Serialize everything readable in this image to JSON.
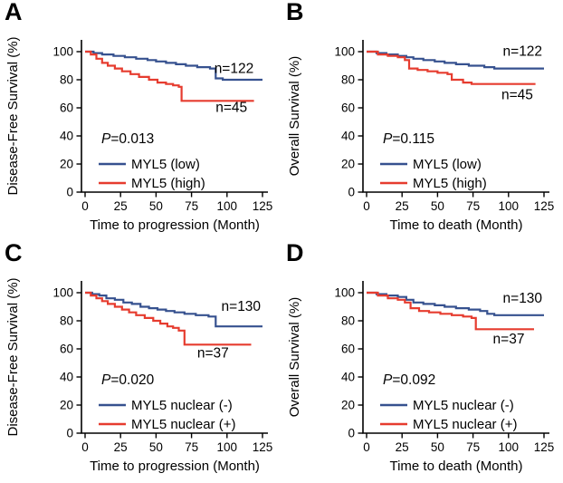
{
  "figure": {
    "background": "#ffffff",
    "colors": {
      "low_group": "#36518f",
      "high_group": "#e63c2f",
      "axis": "#000000"
    }
  },
  "chart_data": [
    {
      "panel": "A",
      "type": "line",
      "subtype": "kaplan_meier_step",
      "xlabel": "Time to progression (Month)",
      "ylabel": "Disease-Free Survival (%)",
      "xlim": [
        0,
        130
      ],
      "ylim": [
        0,
        108
      ],
      "xticks": [
        0,
        25,
        50,
        75,
        100,
        125
      ],
      "yticks": [
        0,
        20,
        40,
        60,
        80,
        100
      ],
      "grid": false,
      "legend_position": "lower-left",
      "p_value": "P=0.013",
      "series": [
        {
          "name": "MYL5 (low)",
          "color": "#36518f",
          "n_label": "n=122",
          "n_label_pos": [
            91,
            85
          ],
          "points": [
            [
              0,
              100
            ],
            [
              6,
              99
            ],
            [
              12,
              98
            ],
            [
              20,
              97
            ],
            [
              28,
              96
            ],
            [
              36,
              95
            ],
            [
              44,
              94
            ],
            [
              50,
              93
            ],
            [
              57,
              92
            ],
            [
              64,
              91
            ],
            [
              71,
              90
            ],
            [
              79,
              89
            ],
            [
              88,
              88
            ],
            [
              92,
              81
            ],
            [
              97,
              80
            ],
            [
              125,
              80
            ]
          ]
        },
        {
          "name": "MYL5 (high)",
          "color": "#e63c2f",
          "n_label": "n=45",
          "n_label_pos": [
            92,
            57
          ],
          "points": [
            [
              0,
              100
            ],
            [
              4,
              98
            ],
            [
              8,
              95
            ],
            [
              12,
              92
            ],
            [
              16,
              90
            ],
            [
              21,
              88
            ],
            [
              26,
              86
            ],
            [
              32,
              84
            ],
            [
              38,
              82
            ],
            [
              45,
              80
            ],
            [
              51,
              78
            ],
            [
              57,
              77
            ],
            [
              62,
              76
            ],
            [
              66,
              75
            ],
            [
              68,
              65
            ],
            [
              119,
              65
            ]
          ]
        }
      ]
    },
    {
      "panel": "B",
      "type": "line",
      "subtype": "kaplan_meier_step",
      "xlabel": "Time to death (Month)",
      "ylabel": "Overall Survival (%)",
      "xlim": [
        0,
        130
      ],
      "ylim": [
        0,
        108
      ],
      "xticks": [
        0,
        25,
        50,
        75,
        100,
        125
      ],
      "yticks": [
        0,
        20,
        40,
        60,
        80,
        100
      ],
      "grid": false,
      "legend_position": "lower-left",
      "p_value": "P=0.115",
      "series": [
        {
          "name": "MYL5 (low)",
          "color": "#36518f",
          "n_label": "n=122",
          "n_label_pos": [
            96,
            97
          ],
          "points": [
            [
              0,
              100
            ],
            [
              7,
              99
            ],
            [
              14,
              98
            ],
            [
              22,
              97
            ],
            [
              28,
              96
            ],
            [
              33,
              95
            ],
            [
              40,
              94
            ],
            [
              48,
              93
            ],
            [
              55,
              92
            ],
            [
              63,
              91
            ],
            [
              72,
              90
            ],
            [
              83,
              89
            ],
            [
              90,
              88
            ],
            [
              125,
              88
            ]
          ]
        },
        {
          "name": "MYL5 (high)",
          "color": "#e63c2f",
          "n_label": "n=45",
          "n_label_pos": [
            95,
            66
          ],
          "points": [
            [
              0,
              100
            ],
            [
              8,
              98
            ],
            [
              15,
              97
            ],
            [
              22,
              96
            ],
            [
              27,
              94
            ],
            [
              30,
              88
            ],
            [
              36,
              87
            ],
            [
              43,
              86
            ],
            [
              50,
              85
            ],
            [
              57,
              84
            ],
            [
              60,
              80
            ],
            [
              68,
              78
            ],
            [
              74,
              77
            ],
            [
              119,
              77
            ]
          ]
        }
      ]
    },
    {
      "panel": "C",
      "type": "line",
      "subtype": "kaplan_meier_step",
      "xlabel": "Time to progression (Month)",
      "ylabel": "Disease-Free Survival (%)",
      "xlim": [
        0,
        130
      ],
      "ylim": [
        0,
        108
      ],
      "xticks": [
        0,
        25,
        50,
        75,
        100,
        125
      ],
      "yticks": [
        0,
        20,
        40,
        60,
        80,
        100
      ],
      "grid": false,
      "legend_position": "lower-left",
      "p_value": "P=0.020",
      "series": [
        {
          "name": "MYL5 nuclear (-)",
          "color": "#36518f",
          "n_label": "n=130",
          "n_label_pos": [
            96,
            87
          ],
          "points": [
            [
              0,
              100
            ],
            [
              5,
              99
            ],
            [
              10,
              98
            ],
            [
              15,
              96
            ],
            [
              21,
              95
            ],
            [
              27,
              93
            ],
            [
              33,
              92
            ],
            [
              39,
              90
            ],
            [
              45,
              89
            ],
            [
              51,
              88
            ],
            [
              57,
              87
            ],
            [
              63,
              86
            ],
            [
              70,
              85
            ],
            [
              78,
              84
            ],
            [
              87,
              83
            ],
            [
              92,
              76
            ],
            [
              125,
              76
            ]
          ]
        },
        {
          "name": "MYL5 nuclear (+)",
          "color": "#e63c2f",
          "n_label": "n=37",
          "n_label_pos": [
            79,
            54
          ],
          "points": [
            [
              0,
              100
            ],
            [
              4,
              98
            ],
            [
              8,
              96
            ],
            [
              12,
              94
            ],
            [
              16,
              92
            ],
            [
              21,
              90
            ],
            [
              26,
              88
            ],
            [
              31,
              86
            ],
            [
              36,
              84
            ],
            [
              42,
              82
            ],
            [
              48,
              80
            ],
            [
              53,
              78
            ],
            [
              58,
              76
            ],
            [
              62,
              75
            ],
            [
              66,
              73
            ],
            [
              70,
              63
            ],
            [
              117,
              63
            ]
          ]
        }
      ]
    },
    {
      "panel": "D",
      "type": "line",
      "subtype": "kaplan_meier_step",
      "xlabel": "Time to death (Month)",
      "ylabel": "Overall Survival (%)",
      "xlim": [
        0,
        130
      ],
      "ylim": [
        0,
        108
      ],
      "xticks": [
        0,
        25,
        50,
        75,
        100,
        125
      ],
      "yticks": [
        0,
        20,
        40,
        60,
        80,
        100
      ],
      "grid": false,
      "legend_position": "lower-left",
      "p_value": "P=0.092",
      "series": [
        {
          "name": "MYL5 nuclear (-)",
          "color": "#36518f",
          "n_label": "n=130",
          "n_label_pos": [
            96,
            93
          ],
          "points": [
            [
              0,
              100
            ],
            [
              7,
              99
            ],
            [
              14,
              98
            ],
            [
              22,
              97
            ],
            [
              28,
              95
            ],
            [
              33,
              93
            ],
            [
              40,
              92
            ],
            [
              48,
              91
            ],
            [
              55,
              90
            ],
            [
              63,
              89
            ],
            [
              72,
              88
            ],
            [
              80,
              87
            ],
            [
              85,
              85
            ],
            [
              90,
              84
            ],
            [
              125,
              84
            ]
          ]
        },
        {
          "name": "MYL5 nuclear (+)",
          "color": "#e63c2f",
          "n_label": "n=37",
          "n_label_pos": [
            89,
            64
          ],
          "points": [
            [
              0,
              100
            ],
            [
              8,
              98
            ],
            [
              15,
              96
            ],
            [
              22,
              95
            ],
            [
              27,
              93
            ],
            [
              31,
              89
            ],
            [
              37,
              87
            ],
            [
              44,
              86
            ],
            [
              52,
              85
            ],
            [
              60,
              84
            ],
            [
              68,
              83
            ],
            [
              74,
              82
            ],
            [
              77,
              74
            ],
            [
              118,
              74
            ]
          ]
        }
      ]
    }
  ]
}
